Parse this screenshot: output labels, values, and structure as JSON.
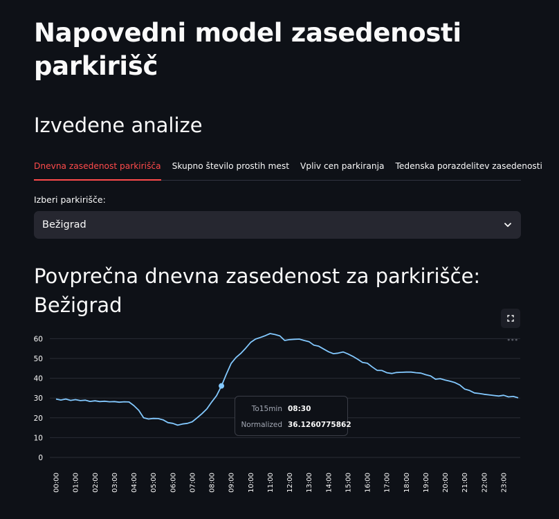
{
  "page": {
    "title": "Napovedni model zasedenosti parkirišč",
    "section_title": "Izvedene analize"
  },
  "tabs": [
    {
      "label": "Dnevna zasedenost parkirišča",
      "active": true
    },
    {
      "label": "Skupno število prostih mest",
      "active": false
    },
    {
      "label": "Vpliv cen parkiranja",
      "active": false
    },
    {
      "label": "Tedenska porazdelitev zasedenosti",
      "active": false
    }
  ],
  "select": {
    "label": "Izberi parkirišče:",
    "value": "Bežigrad"
  },
  "chart_heading": "Povprečna dnevna zasedenost za parkirišče: Bežigrad",
  "icons": {
    "fullscreen": "fullscreen-icon",
    "more": "more-horizontal-icon",
    "dropdown": "chevron-down-icon"
  },
  "colors": {
    "background": "#0e1117",
    "line": "#83c9ff",
    "active_tab": "#ff4b4b",
    "select_bg": "#262730"
  },
  "tooltip": {
    "rows": [
      {
        "key": "To15min",
        "value": "08:30"
      },
      {
        "key": "Normalized",
        "value": "36.1260775862"
      }
    ]
  },
  "chart_data": {
    "type": "line",
    "xlabel": "",
    "ylabel": "",
    "ylim": [
      0,
      63
    ],
    "y_ticks": [
      0,
      10,
      20,
      30,
      40,
      50,
      60
    ],
    "x_ticks": [
      "00:00",
      "01:00",
      "02:00",
      "03:00",
      "04:00",
      "05:00",
      "06:00",
      "07:00",
      "08:00",
      "09:00",
      "10:00",
      "11:00",
      "12:00",
      "13:00",
      "14:00",
      "15:00",
      "16:00",
      "17:00",
      "18:00",
      "19:00",
      "20:00",
      "21:00",
      "22:00",
      "23:00"
    ],
    "grid": true,
    "series": [
      {
        "x": [
          "00:00",
          "00:15",
          "00:30",
          "00:45",
          "01:00",
          "01:15",
          "01:30",
          "01:45",
          "02:00",
          "02:15",
          "02:30",
          "02:45",
          "03:00",
          "03:15",
          "03:30",
          "03:45",
          "04:00",
          "04:15",
          "04:30",
          "04:45",
          "05:00",
          "05:15",
          "05:30",
          "05:45",
          "06:00",
          "06:15",
          "06:30",
          "06:45",
          "07:00",
          "07:15",
          "07:30",
          "07:45",
          "08:00",
          "08:15",
          "08:30",
          "08:45",
          "09:00",
          "09:15",
          "09:30",
          "09:45",
          "10:00",
          "10:15",
          "10:30",
          "10:45",
          "11:00",
          "11:15",
          "11:30",
          "11:45",
          "12:00",
          "12:15",
          "12:30",
          "12:45",
          "13:00",
          "13:15",
          "13:30",
          "13:45",
          "14:00",
          "14:15",
          "14:30",
          "14:45",
          "15:00",
          "15:15",
          "15:30",
          "15:45",
          "16:00",
          "16:15",
          "16:30",
          "16:45",
          "17:00",
          "17:15",
          "17:30",
          "17:45",
          "18:00",
          "18:15",
          "18:30",
          "18:45",
          "19:00",
          "19:15",
          "19:30",
          "19:45",
          "20:00",
          "20:15",
          "20:30",
          "20:45",
          "21:00",
          "21:15",
          "21:30",
          "21:45",
          "22:00",
          "22:15",
          "22:30",
          "22:45",
          "23:00",
          "23:15",
          "23:30",
          "23:45"
        ],
        "values": [
          29.5,
          29.0,
          29.5,
          28.8,
          29.2,
          28.7,
          28.9,
          28.3,
          28.6,
          28.2,
          28.4,
          28.1,
          28.2,
          27.9,
          28.1,
          28.0,
          26.2,
          23.8,
          20.0,
          19.4,
          19.7,
          19.6,
          19.0,
          17.6,
          17.2,
          16.3,
          16.9,
          17.2,
          18.0,
          20.0,
          22.1,
          24.5,
          28.0,
          31.2,
          36.1,
          42.0,
          47.5,
          50.5,
          52.6,
          55.2,
          58.1,
          59.8,
          60.6,
          61.5,
          62.6,
          62.1,
          61.4,
          59.1,
          59.5,
          59.7,
          59.8,
          59.1,
          58.5,
          56.7,
          56.2,
          54.8,
          53.4,
          52.4,
          52.7,
          53.3,
          52.3,
          51.1,
          49.6,
          48.0,
          47.6,
          45.7,
          44.0,
          43.9,
          42.8,
          42.4,
          42.9,
          43.0,
          43.1,
          43.1,
          42.8,
          42.6,
          41.8,
          41.2,
          39.5,
          39.8,
          39.1,
          38.5,
          37.8,
          36.6,
          34.5,
          33.8,
          32.6,
          32.3,
          31.9,
          31.6,
          31.3,
          31.0,
          31.4,
          30.6,
          30.8,
          30.1
        ]
      }
    ],
    "highlight_point": {
      "x": "08:30",
      "y": 36.1260775862
    }
  }
}
